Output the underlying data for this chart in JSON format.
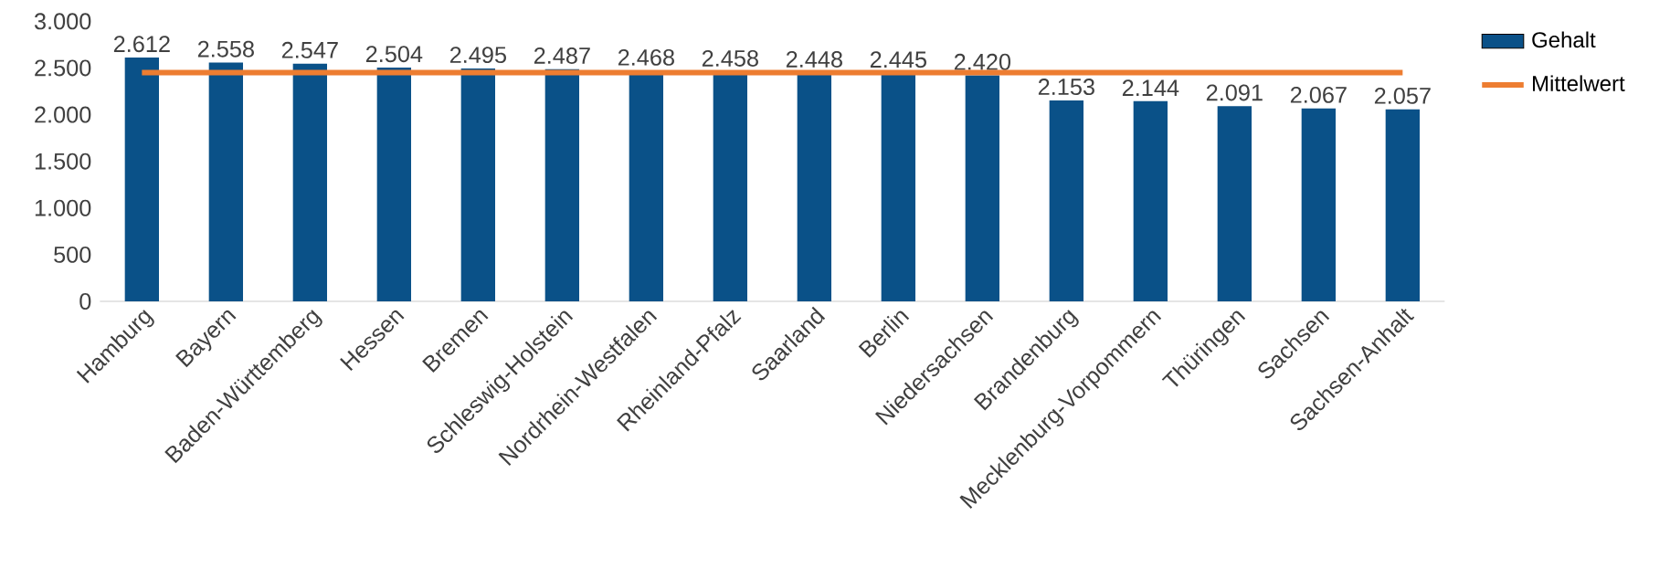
{
  "chart_data": {
    "type": "bar",
    "categories": [
      "Hamburg",
      "Bayern",
      "Baden-Württemberg",
      "Hessen",
      "Bremen",
      "Schleswig-Holstein",
      "Nordrhein-Westfalen",
      "Rheinland-Pfalz",
      "Saarland",
      "Berlin",
      "Niedersachsen",
      "Brandenburg",
      "Mecklenburg-Vorpommern",
      "Thüringen",
      "Sachsen",
      "Sachsen-Anhalt"
    ],
    "series": [
      {
        "name": "Gehalt",
        "color": "#0a5188",
        "values": [
          2612,
          2558,
          2547,
          2504,
          2495,
          2487,
          2468,
          2458,
          2448,
          2445,
          2420,
          2153,
          2144,
          2091,
          2067,
          2057
        ],
        "value_labels": [
          "2.612",
          "2.558",
          "2.547",
          "2.504",
          "2.495",
          "2.487",
          "2.468",
          "2.458",
          "2.448",
          "2.445",
          "2.420",
          "2.153",
          "2.144",
          "2.091",
          "2.067",
          "2.057"
        ]
      },
      {
        "name": "Mittelwert",
        "type": "line",
        "color": "#ed7d31",
        "values": [
          2450,
          2450,
          2450,
          2450,
          2450,
          2450,
          2450,
          2450,
          2450,
          2450,
          2450,
          2450,
          2450,
          2450,
          2450,
          2450
        ]
      }
    ],
    "ylim": [
      0,
      3000
    ],
    "yticks": [
      {
        "value": 0,
        "label": "0"
      },
      {
        "value": 500,
        "label": "500"
      },
      {
        "value": 1000,
        "label": "1.000"
      },
      {
        "value": 1500,
        "label": "1.500"
      },
      {
        "value": 2000,
        "label": "2.000"
      },
      {
        "value": 2500,
        "label": "2.500"
      },
      {
        "value": 3000,
        "label": "3.000"
      }
    ],
    "grid": false,
    "legend": "top right"
  }
}
